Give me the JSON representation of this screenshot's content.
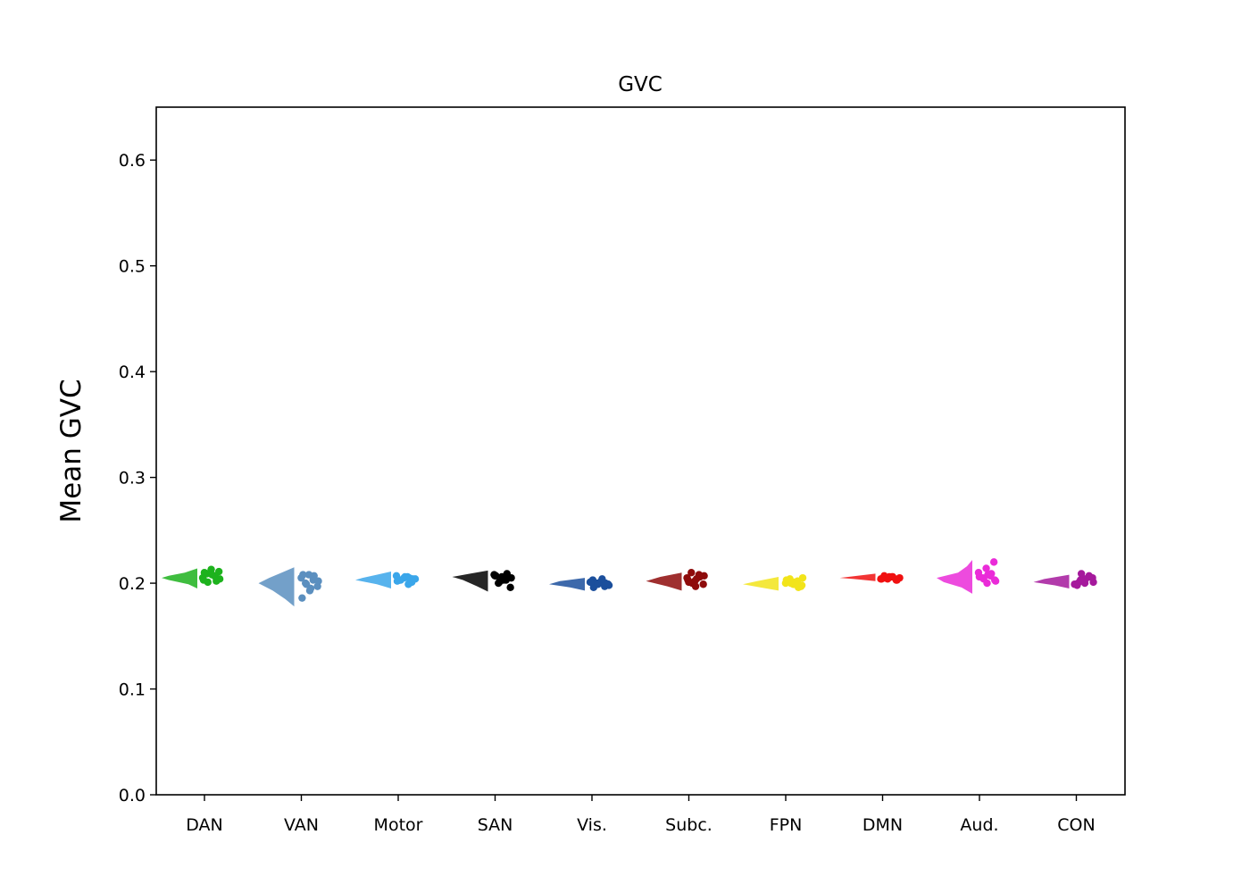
{
  "chart_data": {
    "type": "raincloud",
    "title": "GVC",
    "xlabel": "",
    "ylabel": "Mean GVC",
    "ylim": [
      0,
      0.65
    ],
    "yticks": [
      0.0,
      0.1,
      0.2,
      0.3,
      0.4,
      0.5,
      0.6
    ],
    "ytick_labels": [
      "0.0",
      "0.1",
      "0.2",
      "0.3",
      "0.4",
      "0.5",
      "0.6"
    ],
    "grid": false,
    "categories": [
      "DAN",
      "VAN",
      "Motor",
      "SAN",
      "Vis.",
      "Subc.",
      "FPN",
      "DMN",
      "Aud.",
      "CON"
    ],
    "series": [
      {
        "category": "DAN",
        "color": "#1db21d",
        "density": [
          [
            0.195,
            0
          ],
          [
            0.199,
            0.25
          ],
          [
            0.203,
            0.8
          ],
          [
            0.205,
            1.0
          ],
          [
            0.207,
            0.8
          ],
          [
            0.21,
            0.35
          ],
          [
            0.214,
            0
          ]
        ],
        "points": [
          0.205,
          0.207,
          0.209,
          0.211,
          0.213,
          0.203,
          0.206,
          0.201,
          0.204,
          0.208,
          0.21,
          0.202
        ]
      },
      {
        "category": "VAN",
        "color": "#5b8fbf",
        "density": [
          [
            0.178,
            0
          ],
          [
            0.185,
            0.25
          ],
          [
            0.193,
            0.6
          ],
          [
            0.2,
            1.0
          ],
          [
            0.205,
            0.7
          ],
          [
            0.21,
            0.35
          ],
          [
            0.215,
            0
          ]
        ],
        "points": [
          0.208,
          0.205,
          0.203,
          0.2,
          0.197,
          0.193,
          0.186,
          0.207,
          0.199,
          0.202,
          0.195,
          0.208
        ]
      },
      {
        "category": "Motor",
        "color": "#3aa6ea",
        "density": [
          [
            0.195,
            0
          ],
          [
            0.199,
            0.4
          ],
          [
            0.203,
            1.0
          ],
          [
            0.205,
            0.8
          ],
          [
            0.208,
            0.4
          ],
          [
            0.211,
            0
          ]
        ],
        "points": [
          0.204,
          0.206,
          0.203,
          0.201,
          0.205,
          0.207,
          0.199,
          0.203,
          0.204,
          0.206,
          0.202,
          0.205
        ]
      },
      {
        "category": "SAN",
        "color": "#000000",
        "density": [
          [
            0.192,
            0
          ],
          [
            0.197,
            0.3
          ],
          [
            0.203,
            0.7
          ],
          [
            0.206,
            1.0
          ],
          [
            0.209,
            0.5
          ],
          [
            0.212,
            0
          ]
        ],
        "points": [
          0.206,
          0.208,
          0.203,
          0.2,
          0.196,
          0.204,
          0.207,
          0.209,
          0.201,
          0.205,
          0.203,
          0.207
        ]
      },
      {
        "category": "Vis.",
        "color": "#1b4f9c",
        "density": [
          [
            0.193,
            0
          ],
          [
            0.196,
            0.4
          ],
          [
            0.199,
            1.0
          ],
          [
            0.202,
            0.7
          ],
          [
            0.205,
            0
          ]
        ],
        "points": [
          0.199,
          0.201,
          0.203,
          0.197,
          0.2,
          0.198,
          0.202,
          0.196,
          0.2,
          0.199,
          0.201,
          0.204
        ]
      },
      {
        "category": "Subc.",
        "color": "#8e0b0b",
        "density": [
          [
            0.193,
            0
          ],
          [
            0.197,
            0.4
          ],
          [
            0.202,
            1.0
          ],
          [
            0.206,
            0.6
          ],
          [
            0.21,
            0
          ]
        ],
        "points": [
          0.202,
          0.205,
          0.208,
          0.21,
          0.199,
          0.197,
          0.203,
          0.206,
          0.2,
          0.207,
          0.204,
          0.201
        ]
      },
      {
        "category": "FPN",
        "color": "#f2e41a",
        "density": [
          [
            0.193,
            0
          ],
          [
            0.196,
            0.5
          ],
          [
            0.199,
            1.0
          ],
          [
            0.202,
            0.6
          ],
          [
            0.206,
            0
          ]
        ],
        "points": [
          0.197,
          0.199,
          0.2,
          0.202,
          0.204,
          0.198,
          0.201,
          0.203,
          0.196,
          0.2,
          0.205,
          0.199
        ]
      },
      {
        "category": "DMN",
        "color": "#f01010",
        "density": [
          [
            0.202,
            0
          ],
          [
            0.204,
            0.6
          ],
          [
            0.205,
            1.0
          ],
          [
            0.207,
            0.5
          ],
          [
            0.209,
            0
          ]
        ],
        "points": [
          0.204,
          0.205,
          0.206,
          0.207,
          0.203,
          0.205,
          0.204,
          0.206,
          0.205,
          0.203,
          0.206,
          0.204
        ]
      },
      {
        "category": "Aud.",
        "color": "#ea2bd8",
        "density": [
          [
            0.19,
            0
          ],
          [
            0.196,
            0.3
          ],
          [
            0.201,
            0.8
          ],
          [
            0.205,
            1.0
          ],
          [
            0.21,
            0.4
          ],
          [
            0.216,
            0.15
          ],
          [
            0.222,
            0
          ]
        ],
        "points": [
          0.22,
          0.214,
          0.21,
          0.207,
          0.205,
          0.203,
          0.2,
          0.206,
          0.209,
          0.204,
          0.202,
          0.208
        ]
      },
      {
        "category": "CON",
        "color": "#a5199c",
        "density": [
          [
            0.195,
            0
          ],
          [
            0.198,
            0.4
          ],
          [
            0.201,
            1.0
          ],
          [
            0.204,
            0.7
          ],
          [
            0.208,
            0
          ]
        ],
        "points": [
          0.203,
          0.205,
          0.2,
          0.198,
          0.207,
          0.209,
          0.201,
          0.204,
          0.2,
          0.206,
          0.202,
          0.199
        ]
      }
    ]
  }
}
